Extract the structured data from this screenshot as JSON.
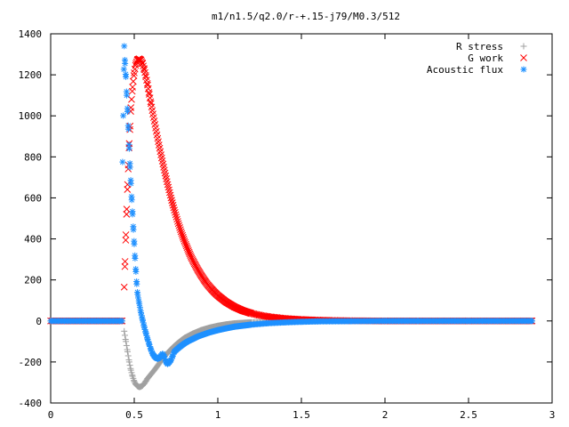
{
  "chart_data": {
    "type": "scatter",
    "title": "m1/n1.5/q2.0/r-+.15-j79/M0.3/512",
    "xlabel": "",
    "ylabel": "",
    "xlim": [
      0,
      3
    ],
    "ylim": [
      -400,
      1400
    ],
    "x_ticks": [
      "0",
      "0.5",
      "1",
      "1.5",
      "2",
      "2.5",
      "3"
    ],
    "y_ticks": [
      "-400",
      "-200",
      "0",
      "200",
      "400",
      "600",
      "800",
      "1000",
      "1200",
      "1400"
    ],
    "grid": false,
    "legend_position": "top-right",
    "series": [
      {
        "name": "R stress",
        "marker": "plus",
        "color": "#a0a0a0",
        "points": [
          [
            0.44,
            -50
          ],
          [
            0.45,
            -100
          ],
          [
            0.46,
            -150
          ],
          [
            0.47,
            -200
          ],
          [
            0.48,
            -240
          ],
          [
            0.49,
            -270
          ],
          [
            0.5,
            -295
          ],
          [
            0.51,
            -310
          ],
          [
            0.52,
            -318
          ],
          [
            0.53,
            -322
          ],
          [
            0.54,
            -320
          ],
          [
            0.55,
            -315
          ],
          [
            0.56,
            -305
          ],
          [
            0.57,
            -293
          ],
          [
            0.58,
            -280
          ],
          [
            0.6,
            -260
          ],
          [
            0.62,
            -240
          ],
          [
            0.64,
            -218
          ],
          [
            0.66,
            -195
          ],
          [
            0.68,
            -175
          ],
          [
            0.7,
            -155
          ],
          [
            0.72,
            -138
          ],
          [
            0.74,
            -122
          ],
          [
            0.76,
            -108
          ],
          [
            0.78,
            -95
          ],
          [
            0.8,
            -83
          ],
          [
            0.85,
            -62
          ],
          [
            0.9,
            -45
          ],
          [
            0.95,
            -33
          ],
          [
            1.0,
            -24
          ],
          [
            1.05,
            -17
          ],
          [
            1.1,
            -12
          ],
          [
            1.2,
            -7
          ],
          [
            1.3,
            -4
          ],
          [
            1.4,
            -2
          ],
          [
            1.6,
            -1
          ],
          [
            1.8,
            0
          ],
          [
            2.0,
            0
          ],
          [
            2.2,
            0
          ],
          [
            2.5,
            0
          ],
          [
            2.88,
            0
          ]
        ]
      },
      {
        "name": "G work",
        "marker": "cross",
        "color": "#ff0000",
        "points": [
          [
            0.44,
            165
          ],
          [
            0.445,
            290
          ],
          [
            0.45,
            420
          ],
          [
            0.455,
            545
          ],
          [
            0.46,
            665
          ],
          [
            0.465,
            760
          ],
          [
            0.47,
            865
          ],
          [
            0.475,
            950
          ],
          [
            0.48,
            1040
          ],
          [
            0.49,
            1140
          ],
          [
            0.5,
            1210
          ],
          [
            0.51,
            1255
          ],
          [
            0.52,
            1275
          ],
          [
            0.53,
            1278
          ],
          [
            0.54,
            1272
          ],
          [
            0.55,
            1255
          ],
          [
            0.56,
            1225
          ],
          [
            0.57,
            1190
          ],
          [
            0.58,
            1150
          ],
          [
            0.59,
            1105
          ],
          [
            0.6,
            1060
          ],
          [
            0.62,
            975
          ],
          [
            0.64,
            890
          ],
          [
            0.66,
            810
          ],
          [
            0.68,
            735
          ],
          [
            0.7,
            665
          ],
          [
            0.72,
            600
          ],
          [
            0.74,
            540
          ],
          [
            0.76,
            485
          ],
          [
            0.78,
            435
          ],
          [
            0.8,
            390
          ],
          [
            0.82,
            350
          ],
          [
            0.84,
            312
          ],
          [
            0.86,
            280
          ],
          [
            0.88,
            250
          ],
          [
            0.9,
            223
          ],
          [
            0.92,
            198
          ],
          [
            0.94,
            176
          ],
          [
            0.96,
            157
          ],
          [
            0.98,
            140
          ],
          [
            1.0,
            124
          ],
          [
            1.05,
            92
          ],
          [
            1.1,
            68
          ],
          [
            1.15,
            50
          ],
          [
            1.2,
            37
          ],
          [
            1.25,
            28
          ],
          [
            1.3,
            21
          ],
          [
            1.4,
            12
          ],
          [
            1.5,
            7
          ],
          [
            1.6,
            4
          ],
          [
            1.7,
            2
          ],
          [
            1.8,
            1
          ],
          [
            2.0,
            0
          ],
          [
            2.2,
            0
          ],
          [
            2.5,
            0
          ],
          [
            2.88,
            0
          ]
        ]
      },
      {
        "name": "Acoustic flux",
        "marker": "star",
        "color": "#1e90ff",
        "points": [
          [
            0.43,
            775
          ],
          [
            0.44,
            1340
          ],
          [
            0.445,
            1255
          ],
          [
            0.45,
            1190
          ],
          [
            0.455,
            1100
          ],
          [
            0.46,
            1020
          ],
          [
            0.465,
            935
          ],
          [
            0.47,
            840
          ],
          [
            0.475,
            750
          ],
          [
            0.48,
            670
          ],
          [
            0.485,
            590
          ],
          [
            0.49,
            520
          ],
          [
            0.495,
            445
          ],
          [
            0.5,
            375
          ],
          [
            0.505,
            305
          ],
          [
            0.51,
            240
          ],
          [
            0.515,
            180
          ],
          [
            0.52,
            130
          ],
          [
            0.53,
            85
          ],
          [
            0.54,
            40
          ],
          [
            0.55,
            5
          ],
          [
            0.56,
            -30
          ],
          [
            0.57,
            -60
          ],
          [
            0.58,
            -90
          ],
          [
            0.59,
            -115
          ],
          [
            0.6,
            -140
          ],
          [
            0.61,
            -160
          ],
          [
            0.62,
            -172
          ],
          [
            0.63,
            -180
          ],
          [
            0.64,
            -185
          ],
          [
            0.65,
            -180
          ],
          [
            0.66,
            -170
          ],
          [
            0.67,
            -160
          ],
          [
            0.68,
            -175
          ],
          [
            0.69,
            -200
          ],
          [
            0.7,
            -210
          ],
          [
            0.71,
            -200
          ],
          [
            0.72,
            -190
          ],
          [
            0.73,
            -170
          ],
          [
            0.74,
            -150
          ],
          [
            0.76,
            -135
          ],
          [
            0.78,
            -122
          ],
          [
            0.8,
            -110
          ],
          [
            0.82,
            -100
          ],
          [
            0.84,
            -92
          ],
          [
            0.86,
            -84
          ],
          [
            0.88,
            -76
          ],
          [
            0.9,
            -70
          ],
          [
            0.95,
            -56
          ],
          [
            1.0,
            -45
          ],
          [
            1.05,
            -36
          ],
          [
            1.1,
            -28
          ],
          [
            1.2,
            -18
          ],
          [
            1.3,
            -11
          ],
          [
            1.4,
            -7
          ],
          [
            1.5,
            -4
          ],
          [
            1.6,
            -2
          ],
          [
            1.8,
            -1
          ],
          [
            2.0,
            0
          ],
          [
            2.2,
            0
          ],
          [
            2.5,
            0
          ],
          [
            2.88,
            0
          ]
        ]
      }
    ]
  }
}
